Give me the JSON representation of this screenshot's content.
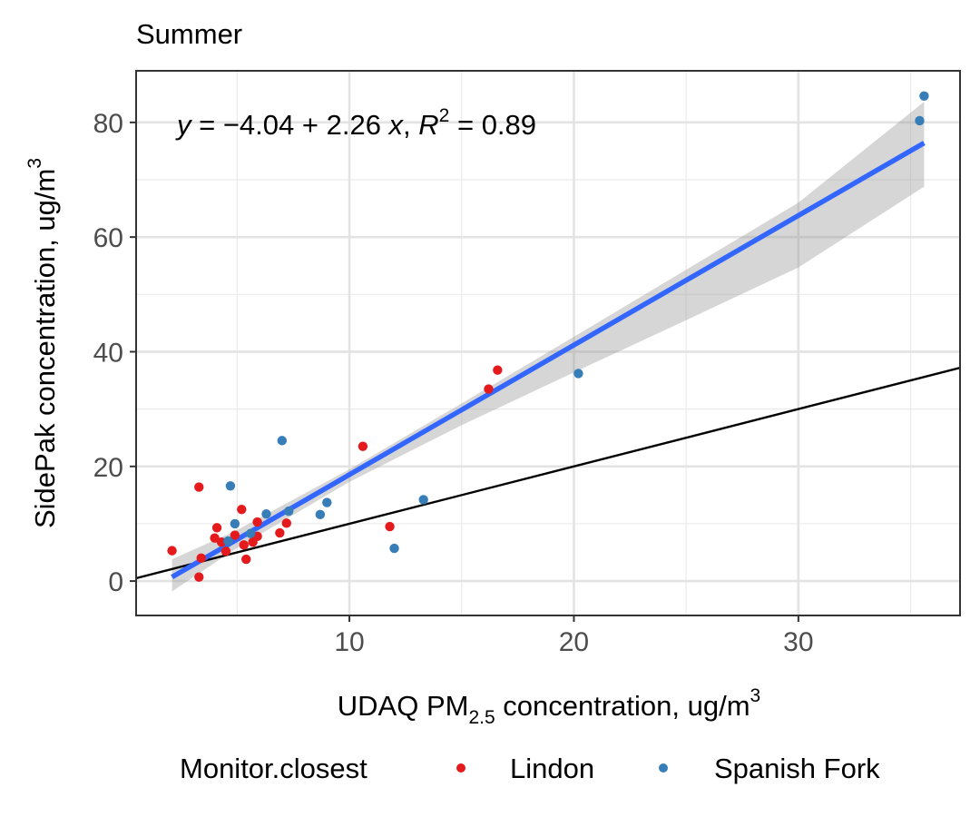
{
  "chart_data": {
    "type": "scatter",
    "title": "Summer",
    "xlabel": {
      "prefix": "UDAQ PM",
      "subscript": "2.5",
      "middle": " concentration, ug/m",
      "superscript": "3"
    },
    "ylabel": {
      "main": "SidePak concentration, ug/m",
      "superscript": "3"
    },
    "xlim": [
      0.5,
      37.2
    ],
    "ylim": [
      -6,
      89
    ],
    "xticks": [
      10,
      20,
      30
    ],
    "yticks": [
      0,
      20,
      40,
      60,
      80
    ],
    "grid": true,
    "annotation": {
      "y_var": "y",
      "eq_part1": " = −4.04 + 2.26 ",
      "x_var": "x",
      "comma": ", ",
      "r_var": "R",
      "r_sup": "2",
      "eq_part2": " = 0.89"
    },
    "legend": {
      "position": "bottom",
      "title": "Monitor.closest",
      "entries": [
        {
          "name": "Lindon",
          "color": "#e41a1c"
        },
        {
          "name": "Spanish Fork",
          "color": "#377eb8"
        }
      ]
    },
    "series": [
      {
        "name": "Lindon",
        "color": "#e41a1c",
        "points": [
          [
            2.1,
            5.3
          ],
          [
            3.3,
            16.4
          ],
          [
            3.3,
            0.7
          ],
          [
            3.4,
            4.0
          ],
          [
            4.0,
            7.5
          ],
          [
            4.1,
            9.3
          ],
          [
            4.3,
            6.8
          ],
          [
            4.5,
            5.2
          ],
          [
            4.9,
            8.0
          ],
          [
            5.2,
            12.5
          ],
          [
            5.3,
            6.3
          ],
          [
            5.4,
            3.8
          ],
          [
            5.7,
            6.8
          ],
          [
            5.9,
            7.8
          ],
          [
            5.9,
            10.3
          ],
          [
            6.9,
            8.4
          ],
          [
            7.2,
            10.1
          ],
          [
            10.6,
            23.5
          ],
          [
            11.8,
            9.5
          ],
          [
            16.2,
            33.5
          ],
          [
            16.6,
            36.8
          ]
        ]
      },
      {
        "name": "Spanish Fork",
        "color": "#377eb8",
        "points": [
          [
            4.6,
            7.0
          ],
          [
            4.7,
            16.6
          ],
          [
            4.9,
            10.0
          ],
          [
            5.6,
            8.3
          ],
          [
            6.3,
            11.7
          ],
          [
            7.0,
            24.5
          ],
          [
            7.3,
            12.2
          ],
          [
            8.7,
            11.6
          ],
          [
            9.0,
            13.7
          ],
          [
            12.0,
            5.7
          ],
          [
            13.3,
            14.2
          ],
          [
            20.2,
            36.2
          ],
          [
            35.4,
            80.3
          ],
          [
            35.6,
            84.6
          ]
        ]
      }
    ],
    "fit_line": {
      "color": "#3366ff",
      "intercept": -4.04,
      "slope": 2.26,
      "x_range": [
        2.1,
        35.6
      ],
      "ribbon_color": "#999999",
      "ribbon": [
        [
          2.1,
          -1.8,
          3.8
        ],
        [
          5.0,
          5.8,
          8.9
        ],
        [
          10.0,
          17.3,
          19.5
        ],
        [
          15.0,
          27.2,
          31.0
        ],
        [
          20.0,
          36.4,
          42.6
        ],
        [
          25.0,
          45.5,
          54.3
        ],
        [
          30.0,
          54.7,
          66.0
        ],
        [
          35.6,
          68.8,
          83.6
        ]
      ]
    },
    "reference_line": {
      "color": "#000000",
      "intercept": 0,
      "slope": 1
    }
  }
}
